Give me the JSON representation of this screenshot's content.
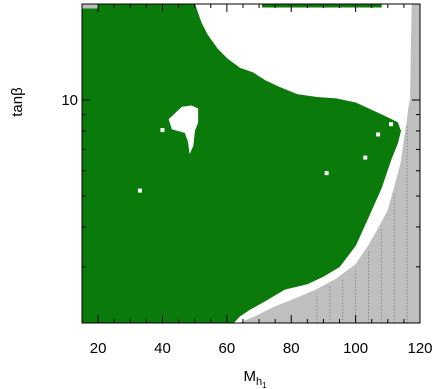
{
  "chart_data": {
    "type": "scatter",
    "title": "",
    "xlabel": {
      "main": "M",
      "sub1": "h",
      "sub2": "1"
    },
    "ylabel": "tanβ",
    "xlim": [
      15,
      120
    ],
    "ylim": [
      2,
      20
    ],
    "y_scale": "log",
    "grid": false,
    "x_ticks": [
      20,
      40,
      60,
      80,
      100,
      120
    ],
    "x_tick_labels": [
      "20",
      "40",
      "60",
      "80",
      "100",
      "120"
    ],
    "y_ticks": [
      10
    ],
    "y_tick_labels": [
      "10"
    ],
    "regions": [
      {
        "id": "allowed",
        "color": "#0a7a0a",
        "boundary": [
          [
            15,
            20
          ],
          [
            45,
            20
          ],
          [
            50,
            20
          ],
          [
            52,
            17.5
          ],
          [
            54,
            16
          ],
          [
            57,
            14.5
          ],
          [
            60,
            13.5
          ],
          [
            64,
            12.6
          ],
          [
            68,
            12.2
          ],
          [
            72,
            11.5
          ],
          [
            76,
            11
          ],
          [
            82,
            10.4
          ],
          [
            88,
            10.2
          ],
          [
            94,
            10.1
          ],
          [
            100,
            9.8
          ],
          [
            106,
            9.2
          ],
          [
            110,
            8.8
          ],
          [
            113,
            8.5
          ],
          [
            114,
            8
          ],
          [
            113,
            7.3
          ],
          [
            111,
            6.5
          ],
          [
            108,
            5.3
          ],
          [
            104,
            4.3
          ],
          [
            100,
            3.5
          ],
          [
            95,
            3
          ],
          [
            90,
            2.8
          ],
          [
            85,
            2.65
          ],
          [
            78,
            2.55
          ],
          [
            72,
            2.35
          ],
          [
            67,
            2.2
          ],
          [
            64,
            2.1
          ],
          [
            62,
            2
          ],
          [
            15,
            2
          ]
        ]
      },
      {
        "id": "allowed-top-strip",
        "color": "#0a7a0a",
        "boundary": [
          [
            71,
            20
          ],
          [
            108,
            20
          ],
          [
            108,
            19.55
          ],
          [
            71,
            19.55
          ]
        ]
      },
      {
        "id": "excluded-lep",
        "color": "#bfbfbf",
        "boundary": [
          [
            64,
            2
          ],
          [
            69,
            2.1
          ],
          [
            75,
            2.25
          ],
          [
            82,
            2.4
          ],
          [
            88,
            2.55
          ],
          [
            94,
            2.75
          ],
          [
            100,
            3.05
          ],
          [
            104,
            3.5
          ],
          [
            107,
            3.95
          ],
          [
            110,
            4.5
          ],
          [
            112,
            5.3
          ],
          [
            114,
            6.3
          ],
          [
            115,
            7.4
          ],
          [
            116,
            8.6
          ],
          [
            116.5,
            9.5
          ],
          [
            117,
            10
          ],
          [
            117.5,
            20
          ],
          [
            120,
            20
          ],
          [
            120,
            2
          ]
        ]
      },
      {
        "id": "excluded-corner",
        "color": "#bfbfbf",
        "boundary": [
          [
            15,
            20
          ],
          [
            20,
            20
          ],
          [
            20,
            19.4
          ],
          [
            15,
            19.4
          ]
        ]
      }
    ],
    "holes": [
      {
        "id": "hole-center",
        "boundary": [
          [
            42,
            8.7
          ],
          [
            44,
            9.1
          ],
          [
            46,
            9.5
          ],
          [
            49,
            9.6
          ],
          [
            51,
            9.4
          ],
          [
            51,
            8.5
          ],
          [
            50,
            8
          ],
          [
            49.5,
            7.2
          ],
          [
            48.5,
            6.8
          ],
          [
            48,
            7.4
          ],
          [
            47,
            7.9
          ],
          [
            45,
            8
          ],
          [
            43,
            8.1
          ]
        ]
      }
    ],
    "white_points": [
      [
        33,
        5.2
      ],
      [
        91,
        5.9
      ],
      [
        103,
        6.6
      ],
      [
        107,
        7.8
      ],
      [
        111,
        8.4
      ],
      [
        40,
        8.05
      ]
    ],
    "hatch_lines_x": [
      88,
      92,
      96,
      100,
      104,
      108,
      112,
      116
    ],
    "colors": {
      "allowed": "#0a7a0a",
      "excluded": "#bfbfbf",
      "hatch": "#6a6a6a",
      "frame": "#000000"
    }
  }
}
